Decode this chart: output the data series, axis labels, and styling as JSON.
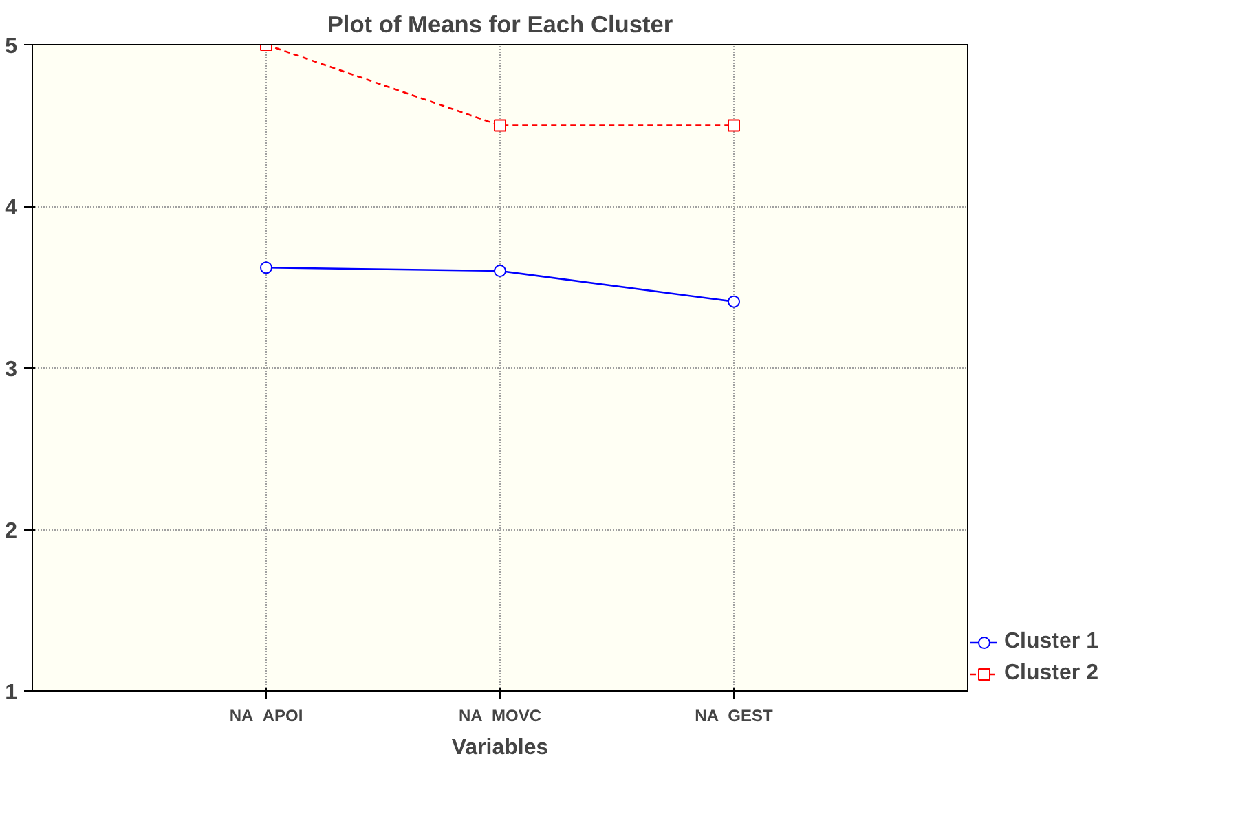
{
  "chart_data": {
    "type": "line",
    "title": "Plot of Means for Each Cluster",
    "xlabel": "Variables",
    "categories": [
      "NA_APOI",
      "NA_MOVC",
      "NA_GEST"
    ],
    "series": [
      {
        "name": "Cluster 1",
        "color": "#0000ff",
        "values": [
          3.62,
          3.6,
          3.41
        ],
        "marker": "circle",
        "line_style": "solid"
      },
      {
        "name": "Cluster 2",
        "color": "#ff0000",
        "values": [
          5.0,
          4.5,
          4.5
        ],
        "marker": "square",
        "line_style": "dashed"
      }
    ],
    "ylim": [
      1,
      5
    ],
    "yticks": [
      1,
      2,
      3,
      4,
      5
    ],
    "grid": true,
    "legend": "bottom right"
  }
}
